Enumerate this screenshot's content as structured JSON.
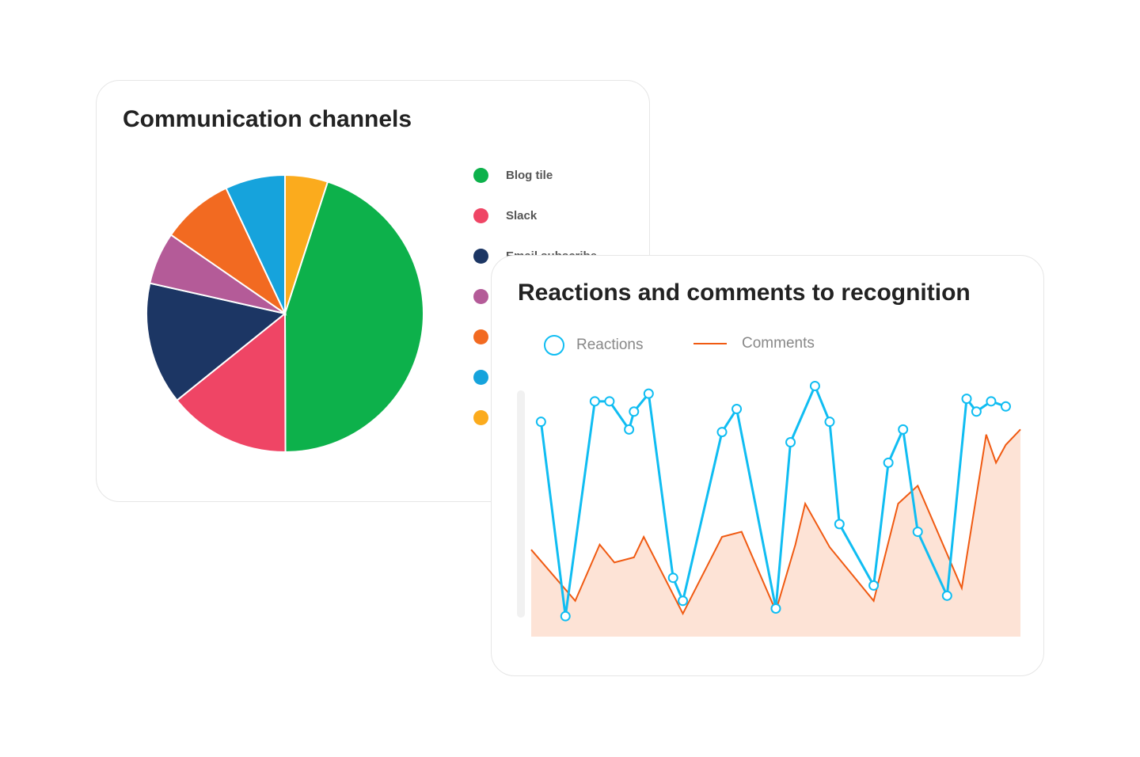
{
  "chart_data": [
    {
      "type": "pie",
      "title": "Communication channels",
      "legend_placement": "right",
      "slices": [
        {
          "label": "Blog tile",
          "value": 45,
          "color": "#0db14b"
        },
        {
          "label": "Slack",
          "value": 14.3,
          "color": "#ef4565"
        },
        {
          "label": "Email subscribe",
          "value": 14.3,
          "color": "#1c3664"
        },
        {
          "label": "",
          "value": 6.1,
          "color": "#b45b98"
        },
        {
          "label": "",
          "value": 8.4,
          "color": "#f26a21"
        },
        {
          "label": "",
          "value": 7,
          "color": "#16a3dc"
        },
        {
          "label": "",
          "value": 5,
          "color": "#fbab1d"
        }
      ]
    },
    {
      "type": "line",
      "title": "Reactions and comments to recognition",
      "legend_placement": "top-left",
      "axes_visible": false,
      "grid": false,
      "xlim": [
        0,
        100
      ],
      "ylim": [
        0,
        100
      ],
      "series": [
        {
          "name": "Reactions",
          "color": "#10bdf2",
          "markers": true,
          "points": [
            [
              2,
              84
            ],
            [
              7,
              8
            ],
            [
              13,
              92
            ],
            [
              16,
              92
            ],
            [
              20,
              81
            ],
            [
              21,
              88
            ],
            [
              24,
              95
            ],
            [
              29,
              23
            ],
            [
              31,
              14
            ],
            [
              39,
              80
            ],
            [
              42,
              89
            ],
            [
              50,
              11
            ],
            [
              53,
              76
            ],
            [
              58,
              98
            ],
            [
              61,
              84
            ],
            [
              63,
              44
            ],
            [
              70,
              20
            ],
            [
              73,
              68
            ],
            [
              76,
              81
            ],
            [
              79,
              41
            ],
            [
              85,
              16
            ],
            [
              89,
              93
            ],
            [
              91,
              88
            ],
            [
              94,
              92
            ],
            [
              97,
              90
            ]
          ]
        },
        {
          "name": "Comments",
          "color": "#f05a12",
          "fill": "#fde3d6",
          "points": [
            [
              0,
              34
            ],
            [
              9,
              14
            ],
            [
              14,
              36
            ],
            [
              17,
              29
            ],
            [
              21,
              31
            ],
            [
              23,
              39
            ],
            [
              31,
              9
            ],
            [
              39,
              39
            ],
            [
              43,
              41
            ],
            [
              50,
              10
            ],
            [
              54,
              36
            ],
            [
              56,
              52
            ],
            [
              61,
              35
            ],
            [
              70,
              14
            ],
            [
              75,
              52
            ],
            [
              79,
              59
            ],
            [
              88,
              19
            ],
            [
              93,
              79
            ],
            [
              95,
              68
            ],
            [
              97,
              75
            ],
            [
              100,
              81
            ]
          ]
        }
      ]
    }
  ]
}
